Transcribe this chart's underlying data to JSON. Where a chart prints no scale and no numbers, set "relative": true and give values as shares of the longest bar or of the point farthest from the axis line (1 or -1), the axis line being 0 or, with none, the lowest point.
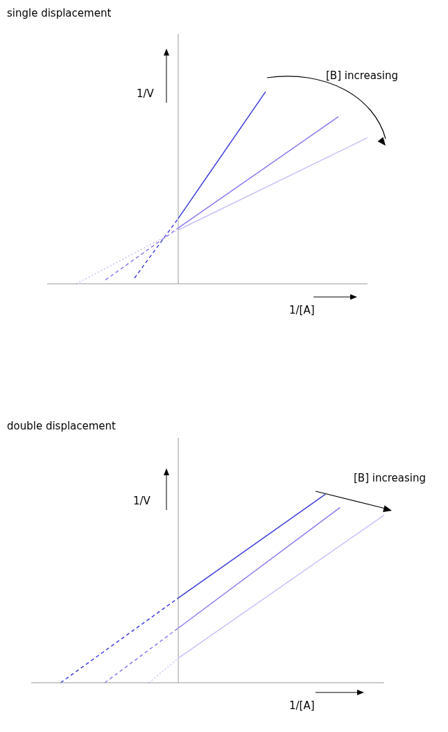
{
  "chart_data": [
    {
      "type": "line",
      "title": "single displacement",
      "xlabel": "1/[A]",
      "ylabel": "1/V",
      "relative": true,
      "marker": "none",
      "annotations": [
        "[B] increasing"
      ],
      "categories": [
        null,
        null,
        null,
        null,
        null,
        null,
        null,
        null,
        null,
        null,
        null,
        null,
        null,
        null,
        null,
        null,
        null,
        null,
        null,
        null,
        null,
        null,
        null
      ],
      "series": [
        {
          "color": "#3c3cdc",
          "line_style": "solid",
          "values": [
            null,
            null,
            null,
            null,
            null,
            null,
            null,
            null,
            null,
            0.34,
            null,
            null,
            null,
            null,
            null,
            1.0,
            null,
            null,
            null,
            null,
            null,
            null,
            null
          ]
        },
        {
          "color": "#8c78f0",
          "line_style": "solid",
          "values": [
            null,
            null,
            null,
            null,
            null,
            null,
            null,
            null,
            null,
            0.29,
            null,
            null,
            null,
            null,
            null,
            null,
            null,
            null,
            null,
            null,
            0.87,
            null,
            null
          ]
        },
        {
          "color": "#c8c0f8",
          "line_style": "solid",
          "values": [
            null,
            null,
            null,
            null,
            null,
            null,
            null,
            null,
            null,
            0.28,
            null,
            null,
            null,
            null,
            null,
            null,
            null,
            null,
            null,
            null,
            null,
            null,
            0.76
          ]
        },
        {
          "color": "#3c3cdc",
          "line_style": "dashed",
          "values": [
            null,
            null,
            null,
            null,
            null,
            null,
            0.03,
            null,
            null,
            0.34,
            null,
            null,
            null,
            null,
            null,
            null,
            null,
            null,
            null,
            null,
            null,
            null,
            null
          ]
        },
        {
          "color": "#8c78f0",
          "line_style": "dashed",
          "values": [
            null,
            null,
            null,
            null,
            0.02,
            null,
            null,
            null,
            null,
            0.29,
            null,
            null,
            null,
            null,
            null,
            null,
            null,
            null,
            null,
            null,
            null,
            null,
            null
          ]
        },
        {
          "color": "#c8c0f8",
          "line_style": "dotted",
          "values": [
            null,
            null,
            0,
            null,
            null,
            null,
            null,
            null,
            null,
            0.28,
            null,
            null,
            null,
            null,
            null,
            null,
            null,
            null,
            null,
            null,
            null,
            null,
            null
          ]
        }
      ]
    },
    {
      "type": "line",
      "title": "double displacement",
      "xlabel": "1/[A]",
      "ylabel": "1/V",
      "relative": true,
      "marker": "none",
      "annotations": [
        "[B] increasing"
      ],
      "categories": [
        null,
        null,
        null,
        null,
        null,
        null,
        null,
        null,
        null,
        null,
        null,
        null,
        null,
        null,
        null,
        null,
        null,
        null,
        null,
        null,
        null,
        null,
        null,
        null,
        null
      ],
      "series": [
        {
          "color": "#3c3cdc",
          "line_style": "solid",
          "values": [
            null,
            null,
            null,
            null,
            null,
            null,
            null,
            null,
            null,
            null,
            0.45,
            null,
            null,
            null,
            null,
            null,
            null,
            null,
            null,
            null,
            1.0,
            null,
            null,
            null,
            null
          ]
        },
        {
          "color": "#8c78f0",
          "line_style": "solid",
          "values": [
            null,
            null,
            null,
            null,
            null,
            null,
            null,
            null,
            null,
            null,
            0.29,
            null,
            null,
            null,
            null,
            null,
            null,
            null,
            null,
            null,
            null,
            0.93,
            null,
            null,
            null
          ]
        },
        {
          "color": "#c8c0f8",
          "line_style": "solid",
          "values": [
            null,
            null,
            null,
            null,
            null,
            null,
            null,
            null,
            null,
            null,
            0.13,
            null,
            null,
            null,
            null,
            null,
            null,
            null,
            null,
            null,
            null,
            null,
            null,
            null,
            0.89
          ]
        },
        {
          "color": "#3c3cdc",
          "line_style": "dashed",
          "values": [
            null,
            null,
            0,
            null,
            null,
            null,
            null,
            null,
            null,
            null,
            0.45,
            null,
            null,
            null,
            null,
            null,
            null,
            null,
            null,
            null,
            null,
            null,
            null,
            null,
            null
          ]
        },
        {
          "color": "#8c78f0",
          "line_style": "dashed",
          "values": [
            null,
            null,
            null,
            null,
            null,
            0,
            null,
            null,
            null,
            null,
            0.29,
            null,
            null,
            null,
            null,
            null,
            null,
            null,
            null,
            null,
            null,
            null,
            null,
            null,
            null
          ]
        },
        {
          "color": "#c8c0f8",
          "line_style": "dotted",
          "values": [
            null,
            null,
            null,
            null,
            null,
            null,
            null,
            null,
            0,
            null,
            0.13,
            null,
            null,
            null,
            null,
            null,
            null,
            null,
            null,
            null,
            null,
            null,
            null,
            null,
            null
          ]
        }
      ]
    }
  ]
}
